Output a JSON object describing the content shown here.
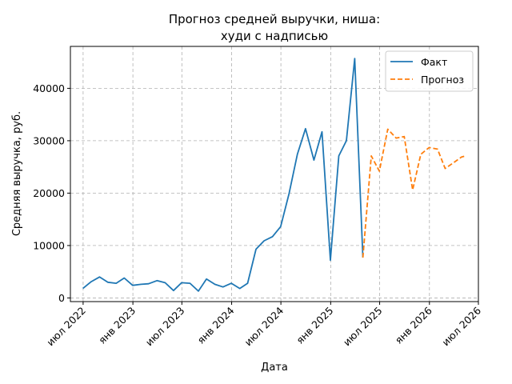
{
  "chart_data": {
    "type": "line",
    "title_line1": "Прогноз средней выручки, ниша:",
    "title_line2": "худи с надписью",
    "xlabel": "Дата",
    "ylabel": "Средняя выручка, руб.",
    "ylim": [
      -700,
      48000
    ],
    "xlim": [
      "2022-05-15",
      "2026-07-01"
    ],
    "grid": true,
    "legend_position": "top-right",
    "y_ticks": [
      0,
      10000,
      20000,
      30000,
      40000
    ],
    "x_ticks": [
      {
        "date": "2022-07-01",
        "label": "июл 2022"
      },
      {
        "date": "2023-01-01",
        "label": "янв 2023"
      },
      {
        "date": "2023-07-01",
        "label": "июл 2023"
      },
      {
        "date": "2024-01-01",
        "label": "янв 2024"
      },
      {
        "date": "2024-07-01",
        "label": "июл 2024"
      },
      {
        "date": "2025-01-01",
        "label": "янв 2025"
      },
      {
        "date": "2025-07-01",
        "label": "июл 2025"
      },
      {
        "date": "2026-01-01",
        "label": "янв 2026"
      },
      {
        "date": "2026-07-01",
        "label": "июл 2026"
      }
    ],
    "series": [
      {
        "name": "Факт",
        "color": "#1f77b4",
        "style": "solid",
        "points": [
          [
            "2022-06-30",
            1800
          ],
          [
            "2022-07-31",
            3100
          ],
          [
            "2022-08-31",
            4000
          ],
          [
            "2022-09-30",
            3000
          ],
          [
            "2022-10-31",
            2800
          ],
          [
            "2022-11-30",
            3800
          ],
          [
            "2022-12-31",
            2400
          ],
          [
            "2023-01-31",
            2600
          ],
          [
            "2023-02-28",
            2700
          ],
          [
            "2023-03-31",
            3300
          ],
          [
            "2023-04-30",
            2900
          ],
          [
            "2023-05-31",
            1400
          ],
          [
            "2023-06-30",
            2900
          ],
          [
            "2023-07-31",
            2800
          ],
          [
            "2023-08-31",
            1300
          ],
          [
            "2023-09-30",
            3600
          ],
          [
            "2023-10-31",
            2600
          ],
          [
            "2023-11-30",
            2100
          ],
          [
            "2023-12-31",
            2800
          ],
          [
            "2024-01-31",
            1800
          ],
          [
            "2024-02-29",
            2800
          ],
          [
            "2024-03-31",
            9300
          ],
          [
            "2024-04-30",
            10900
          ],
          [
            "2024-05-31",
            11700
          ],
          [
            "2024-06-30",
            13600
          ],
          [
            "2024-07-31",
            19900
          ],
          [
            "2024-08-31",
            27400
          ],
          [
            "2024-09-30",
            32300
          ],
          [
            "2024-10-31",
            26300
          ],
          [
            "2024-11-30",
            31700
          ],
          [
            "2024-12-31",
            7200
          ],
          [
            "2025-01-31",
            27100
          ],
          [
            "2025-02-28",
            30000
          ],
          [
            "2025-03-31",
            45700
          ],
          [
            "2025-04-30",
            7700
          ]
        ]
      },
      {
        "name": "Прогноз",
        "color": "#ff7f0e",
        "style": "dashed",
        "points": [
          [
            "2025-04-30",
            7700
          ],
          [
            "2025-05-31",
            27100
          ],
          [
            "2025-06-30",
            24200
          ],
          [
            "2025-07-31",
            32200
          ],
          [
            "2025-08-31",
            30500
          ],
          [
            "2025-09-30",
            30800
          ],
          [
            "2025-10-31",
            20600
          ],
          [
            "2025-11-30",
            27400
          ],
          [
            "2025-12-31",
            28700
          ],
          [
            "2026-01-31",
            28400
          ],
          [
            "2026-02-28",
            24700
          ],
          [
            "2026-03-31",
            25800
          ],
          [
            "2026-04-30",
            26900
          ],
          [
            "2026-05-15",
            27100
          ]
        ]
      }
    ]
  }
}
